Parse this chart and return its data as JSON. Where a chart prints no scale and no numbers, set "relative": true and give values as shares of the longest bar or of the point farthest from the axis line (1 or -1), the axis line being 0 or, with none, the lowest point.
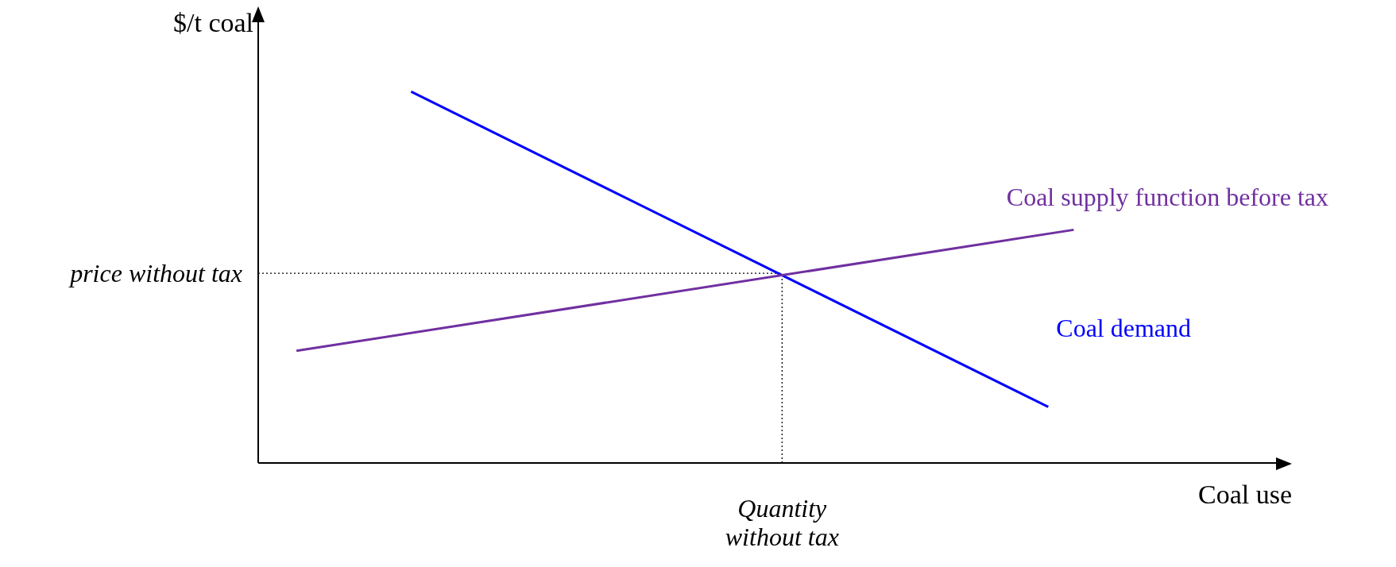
{
  "chart_data": {
    "type": "line",
    "relative": true,
    "xlabel": "Coal use",
    "ylabel": "$/t coal",
    "marker": "none",
    "line_style": "solid",
    "categories": [
      null,
      null,
      null,
      null,
      null,
      null,
      null,
      null,
      null,
      null,
      null,
      null,
      null,
      null,
      null,
      null,
      null,
      null,
      null,
      null,
      null,
      null,
      null,
      null,
      null,
      null,
      null,
      null,
      null,
      null,
      null,
      null,
      null,
      null,
      null,
      null,
      null,
      null,
      null,
      null,
      null,
      null,
      null,
      null,
      null,
      null,
      null,
      null,
      null,
      null,
      null,
      null,
      null,
      null,
      null,
      null,
      null,
      null,
      null,
      null,
      null,
      null,
      null,
      null,
      null,
      null,
      null,
      null,
      null,
      null,
      null,
      null,
      null,
      null,
      null,
      null,
      null,
      null,
      null,
      null,
      null
    ],
    "series": [
      {
        "name": "Coal demand",
        "color": "#0000ff",
        "values": [
          null,
          null,
          null,
          null,
          null,
          null,
          null,
          null,
          null,
          null,
          null,
          null,
          1,
          null,
          null,
          null,
          null,
          null,
          null,
          null,
          null,
          null,
          null,
          null,
          null,
          null,
          null,
          null,
          null,
          null,
          null,
          null,
          null,
          null,
          null,
          null,
          null,
          null,
          null,
          null,
          null,
          null,
          null,
          null,
          null,
          null,
          null,
          null,
          null,
          null,
          null,
          null,
          null,
          null,
          null,
          null,
          null,
          null,
          null,
          null,
          null,
          null,
          0.151,
          null,
          null,
          null,
          null,
          null,
          null,
          null,
          null,
          null,
          null,
          null,
          null,
          null,
          null,
          null,
          null,
          null,
          null
        ]
      },
      {
        "name": "Coal supply function before tax",
        "color": "#7030a0",
        "values": [
          null,
          null,
          null,
          0.302,
          null,
          null,
          null,
          null,
          null,
          null,
          null,
          null,
          null,
          null,
          null,
          null,
          null,
          null,
          null,
          null,
          null,
          null,
          null,
          null,
          null,
          null,
          null,
          null,
          null,
          null,
          null,
          null,
          null,
          null,
          null,
          null,
          null,
          null,
          null,
          null,
          null,
          null,
          null,
          null,
          null,
          null,
          null,
          null,
          null,
          null,
          null,
          null,
          null,
          null,
          null,
          null,
          null,
          null,
          null,
          null,
          null,
          null,
          null,
          null,
          0.628,
          null,
          null,
          null,
          null,
          null,
          null,
          null,
          null,
          null,
          null,
          null,
          null,
          null,
          null,
          null,
          null
        ]
      }
    ],
    "ref_lines": [
      {
        "axis": "y",
        "value": 0.511,
        "label": "price without tax",
        "color": "#000000",
        "line_style": "dotted"
      }
    ],
    "annotations": [
      "Quantity without tax"
    ]
  }
}
